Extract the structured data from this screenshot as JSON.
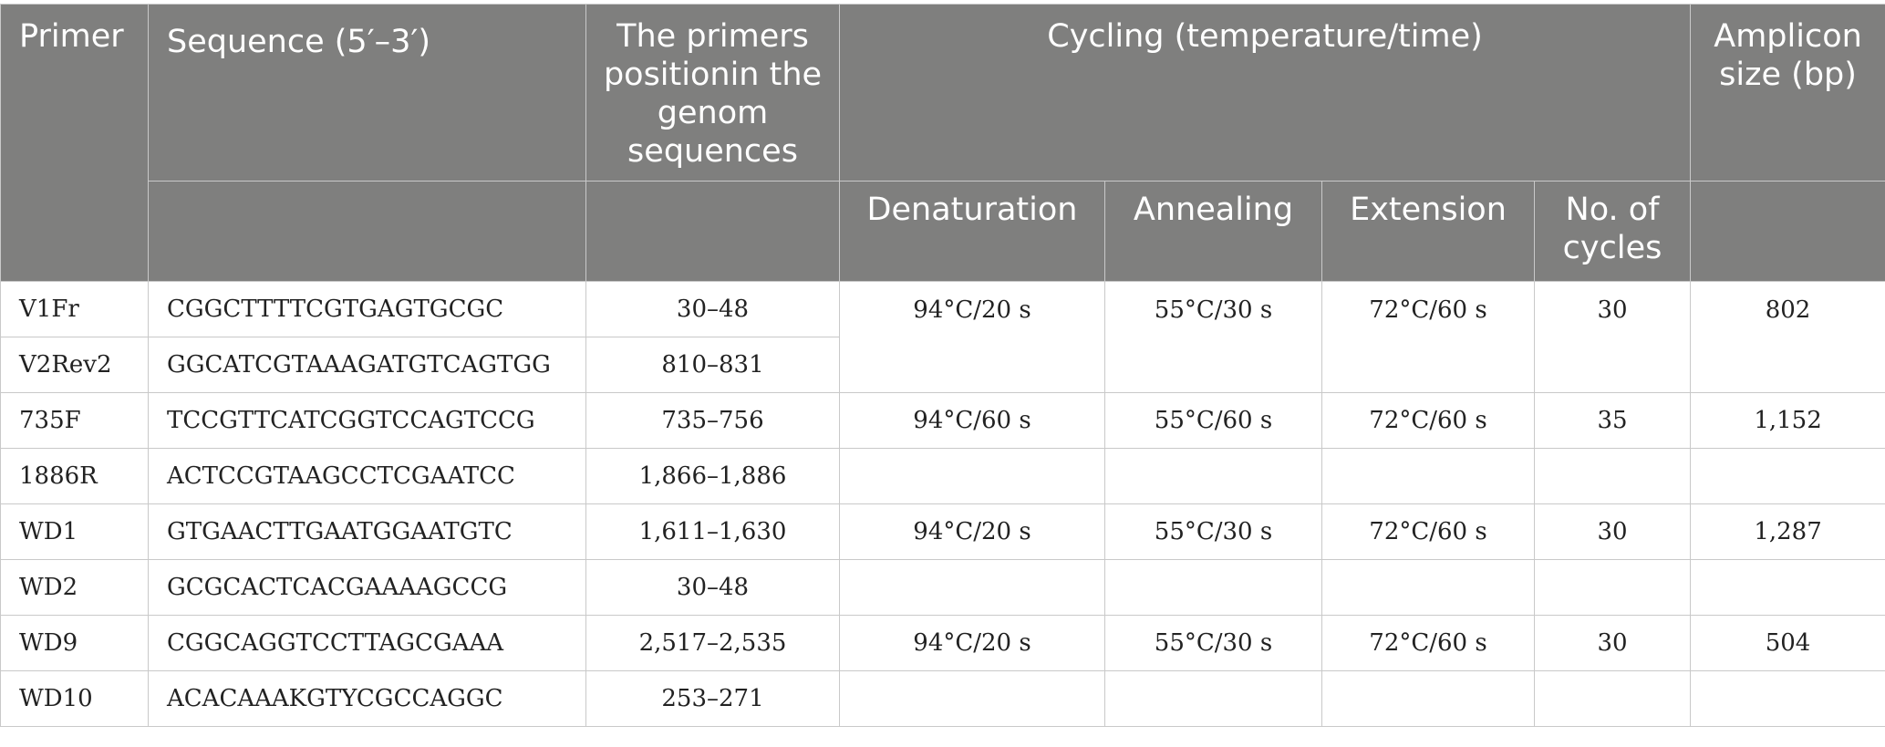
{
  "headers": {
    "primer": "Primer",
    "sequence": "Sequence (5′–3′)",
    "position": "The primers positionin the genom sequences",
    "cycling": "Cycling (temperature/time)",
    "amplicon": "Amplicon size (bp)",
    "denaturation": "Denaturation",
    "annealing": "Annealing",
    "extension": "Extension",
    "cycles": "No. of cycles"
  },
  "rows": [
    {
      "primer": "V1Fr",
      "sequence": "CGGCTTTTCGTGAGTGCGC",
      "position": "30–48",
      "denaturation": "94°C/20 s",
      "annealing": "55°C/30 s",
      "extension": "72°C/60 s",
      "cycles": "30",
      "amplicon": "802"
    },
    {
      "primer": "V2Rev2",
      "sequence": "GGCATCGTAAAGATGTCAGTGG",
      "position": "810–831"
    },
    {
      "primer": "735F",
      "sequence": "TCCGTTCATCGGTCCAGTCCG",
      "position": "735–756",
      "denaturation": "94°C/60 s",
      "annealing": "55°C/60 s",
      "extension": "72°C/60 s",
      "cycles": "35",
      "amplicon": "1,152"
    },
    {
      "primer": "1886R",
      "sequence": "ACTCCGTAAGCCTCGAATCC",
      "position": "1,866–1,886"
    },
    {
      "primer": "WD1",
      "sequence": "GTGAACTTGAATGGAATGTC",
      "position": "1,611–1,630",
      "denaturation": "94°C/20 s",
      "annealing": "55°C/30 s",
      "extension": "72°C/60 s",
      "cycles": "30",
      "amplicon": "1,287"
    },
    {
      "primer": "WD2",
      "sequence": "GCGCACTCACGAAAAGCCG",
      "position": "30–48"
    },
    {
      "primer": "WD9",
      "sequence": "CGGCAGGTCCTTAGCGAAA",
      "position": "2,517–2,535",
      "denaturation": "94°C/20 s",
      "annealing": "55°C/30 s",
      "extension": "72°C/60 s",
      "cycles": "30",
      "amplicon": "504"
    },
    {
      "primer": "WD10",
      "sequence": "ACACAAAKGTYCGCCAGGC",
      "position": "253–271"
    }
  ]
}
